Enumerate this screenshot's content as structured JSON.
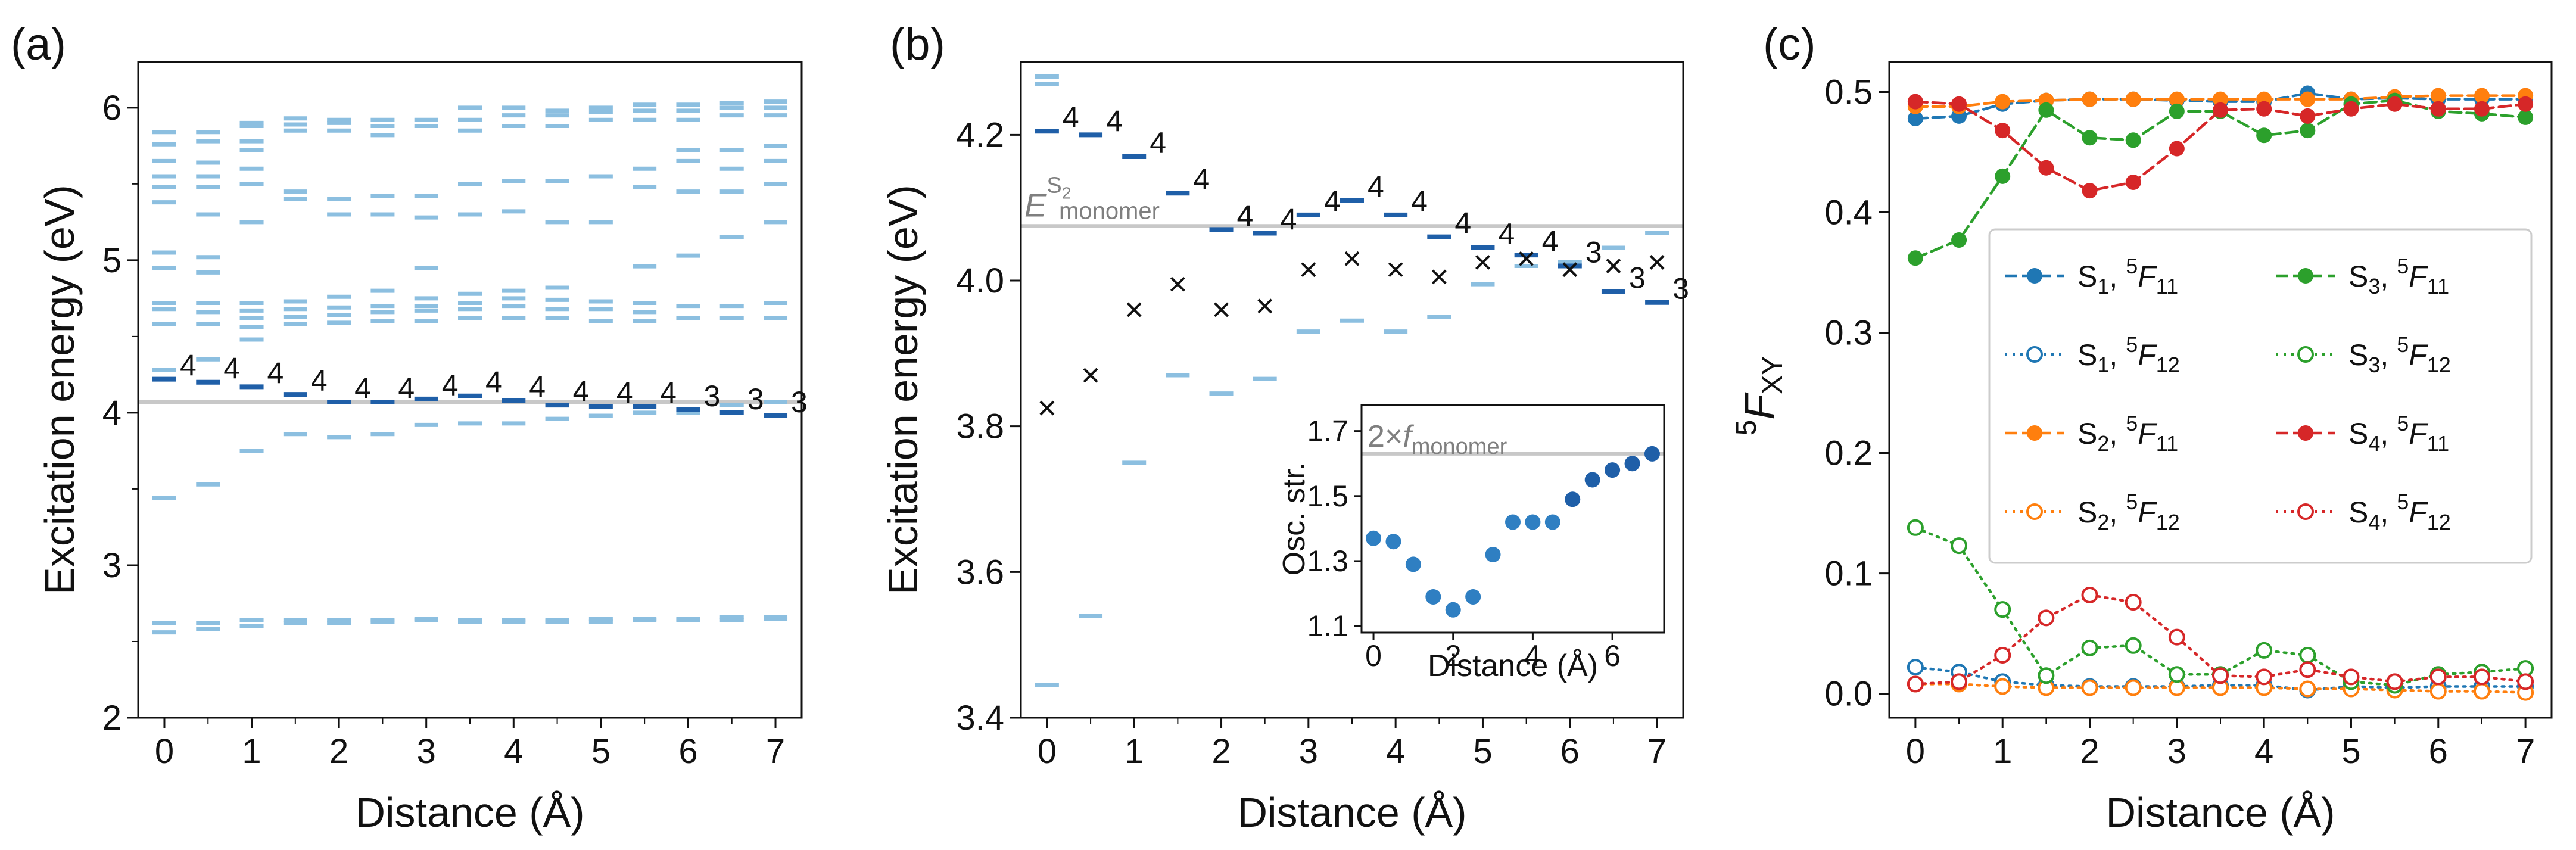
{
  "chart_data": [
    {
      "panel": "(a)",
      "type": "scatter",
      "xlabel": "Distance (Å)",
      "ylabel": "Excitation energy (eV)",
      "xlim": [
        -0.3,
        7.3
      ],
      "ylim": [
        2.0,
        6.3
      ],
      "xticks": [
        "0",
        "1",
        "2",
        "3",
        "4",
        "5",
        "6",
        "7"
      ],
      "yticks": [
        "2",
        "3",
        "4",
        "5",
        "6"
      ],
      "monomer_line": 4.07,
      "x": [
        0,
        0.5,
        1,
        1.5,
        2,
        2.5,
        3,
        3.5,
        4,
        4.5,
        5,
        5.5,
        6,
        6.5,
        7
      ],
      "bright_states": [
        4.22,
        4.2,
        4.17,
        4.12,
        4.07,
        4.07,
        4.09,
        4.11,
        4.08,
        4.05,
        4.04,
        4.04,
        4.02,
        4.0,
        3.98
      ],
      "degeneracy_labels": [
        "4",
        "4",
        "4",
        "4",
        "4",
        "4",
        "4",
        "4",
        "4",
        "4",
        "4",
        "4",
        "3",
        "3",
        "3"
      ],
      "dark_states": [
        [
          2.56,
          2.62,
          3.44,
          4.28,
          4.58,
          4.68,
          4.72,
          4.95,
          5.05,
          5.38,
          5.48,
          5.55,
          5.65,
          5.76,
          5.84
        ],
        [
          2.58,
          2.62,
          3.53,
          4.35,
          4.58,
          4.66,
          4.72,
          4.92,
          5.02,
          5.3,
          5.48,
          5.55,
          5.64,
          5.78,
          5.84
        ],
        [
          2.6,
          2.64,
          3.75,
          4.48,
          4.56,
          4.62,
          4.67,
          4.72,
          5.25,
          5.5,
          5.6,
          5.72,
          5.78,
          5.88,
          5.9
        ],
        [
          2.62,
          2.64,
          3.86,
          4.58,
          4.63,
          4.68,
          4.73,
          5.4,
          5.45,
          5.85,
          5.89,
          5.93
        ],
        [
          2.62,
          2.64,
          3.84,
          4.59,
          4.64,
          4.69,
          4.76,
          5.3,
          5.4,
          5.85,
          5.9,
          5.92
        ],
        [
          2.63,
          2.64,
          3.86,
          4.6,
          4.66,
          4.7,
          4.8,
          5.3,
          5.42,
          5.82,
          5.88,
          5.92
        ],
        [
          2.64,
          2.65,
          3.92,
          4.6,
          4.67,
          4.7,
          4.75,
          4.95,
          5.28,
          5.42,
          5.88,
          5.92
        ],
        [
          2.63,
          2.64,
          3.93,
          4.62,
          4.68,
          4.72,
          4.78,
          5.3,
          5.5,
          5.85,
          5.92,
          6.0
        ],
        [
          2.63,
          2.64,
          3.93,
          4.62,
          4.7,
          4.75,
          4.8,
          5.32,
          5.52,
          5.88,
          5.95,
          6.0
        ],
        [
          2.63,
          2.64,
          3.96,
          4.62,
          4.68,
          4.74,
          4.82,
          5.25,
          5.52,
          5.88,
          5.95,
          5.98
        ],
        [
          2.63,
          2.65,
          3.98,
          4.6,
          4.68,
          4.73,
          5.25,
          5.55,
          5.92,
          5.97,
          6.0
        ],
        [
          2.64,
          2.65,
          4.0,
          4.6,
          4.66,
          4.72,
          4.96,
          5.48,
          5.6,
          5.92,
          5.98,
          6.02
        ],
        [
          2.64,
          2.65,
          4.0,
          4.62,
          4.7,
          5.03,
          5.45,
          5.65,
          5.72,
          5.92,
          5.98,
          6.02
        ],
        [
          2.64,
          2.66,
          4.05,
          4.62,
          4.7,
          5.15,
          5.45,
          5.6,
          5.72,
          5.95,
          6.0,
          6.03
        ],
        [
          2.65,
          2.66,
          4.07,
          4.62,
          4.72,
          5.25,
          5.5,
          5.65,
          5.75,
          5.95,
          6.0,
          6.04
        ]
      ]
    },
    {
      "panel": "(b)",
      "type": "scatter",
      "xlabel": "Distance (Å)",
      "ylabel": "Excitation energy (eV)",
      "xlim": [
        -0.3,
        7.3
      ],
      "ylim": [
        3.4,
        4.3
      ],
      "xticks": [
        "0",
        "1",
        "2",
        "3",
        "4",
        "5",
        "6",
        "7"
      ],
      "yticks": [
        "3.4",
        "3.6",
        "3.8",
        "4.0",
        "4.2"
      ],
      "monomer_line": 4.075,
      "monomer_label": "E",
      "monomer_label_sup": "S",
      "monomer_label_sup_sub": "2",
      "monomer_label_sub": "monomer",
      "x": [
        0,
        0.5,
        1,
        1.5,
        2,
        2.5,
        3,
        3.5,
        4,
        4.5,
        5,
        5.5,
        6,
        6.5,
        7
      ],
      "bright_states": [
        4.205,
        4.2,
        4.17,
        4.12,
        4.07,
        4.065,
        4.09,
        4.11,
        4.09,
        4.06,
        4.045,
        4.035,
        4.02,
        3.985,
        3.97
      ],
      "degeneracy_labels": [
        "4",
        "4",
        "4",
        "4",
        "4",
        "4",
        "4",
        "4",
        "4",
        "4",
        "4",
        "4",
        "3",
        "3",
        "3"
      ],
      "cross_markers": [
        3.825,
        3.87,
        3.96,
        3.995,
        3.96,
        3.965,
        4.015,
        4.03,
        4.015,
        4.005,
        4.025,
        4.03,
        4.015,
        4.02,
        4.025
      ],
      "dark_states": [
        [
          3.445,
          4.28,
          4.27
        ],
        [
          3.54
        ],
        [
          3.75
        ],
        [
          3.87
        ],
        [
          3.845
        ],
        [
          3.865
        ],
        [
          3.93
        ],
        [
          3.945
        ],
        [
          3.93
        ],
        [
          3.95
        ],
        [
          3.995
        ],
        [
          4.02
        ],
        [
          4.025
        ],
        [
          4.045
        ],
        [
          4.065
        ]
      ],
      "inset": {
        "type": "scatter",
        "xlabel": "Distance (Å)",
        "ylabel": "Osc. str.",
        "xlim": [
          -0.3,
          7.3
        ],
        "ylim": [
          1.08,
          1.78
        ],
        "xticks": [
          "0",
          "2",
          "4",
          "6"
        ],
        "yticks": [
          "1.1",
          "1.3",
          "1.5",
          "1.7"
        ],
        "reference_line": 1.63,
        "reference_label": "2×f",
        "reference_label_sub": "monomer",
        "x": [
          0,
          0.5,
          1,
          1.5,
          2,
          2.5,
          3,
          3.5,
          4,
          4.5,
          5,
          5.5,
          6,
          6.5,
          7
        ],
        "values": [
          1.37,
          1.36,
          1.29,
          1.19,
          1.15,
          1.19,
          1.32,
          1.42,
          1.42,
          1.42,
          1.49,
          1.55,
          1.58,
          1.6,
          1.63
        ]
      }
    },
    {
      "panel": "(c)",
      "type": "line",
      "xlabel": "Distance (Å)",
      "ylabel": "F",
      "ylabel_presup": "5",
      "ylabel_sub": "XY",
      "xlim": [
        -0.3,
        7.3
      ],
      "ylim": [
        -0.02,
        0.525
      ],
      "xticks": [
        "0",
        "1",
        "2",
        "3",
        "4",
        "5",
        "6",
        "7"
      ],
      "yticks": [
        "0.0",
        "0.1",
        "0.2",
        "0.3",
        "0.4",
        "0.5"
      ],
      "x": [
        0,
        0.5,
        1,
        1.5,
        2,
        2.5,
        3,
        3.5,
        4,
        4.5,
        5,
        5.5,
        6,
        6.5,
        7
      ],
      "legend_position": "center-right",
      "series": [
        {
          "state": "S",
          "state_sub": "1",
          "prefix": "5",
          "quantity": "F",
          "sub": "11",
          "color": "#1f77b4",
          "style": "dashed",
          "filled": true,
          "values": [
            0.478,
            0.48,
            0.49,
            0.493,
            0.494,
            0.494,
            0.493,
            0.492,
            0.492,
            0.499,
            0.494,
            0.495,
            0.494,
            0.494,
            0.494
          ]
        },
        {
          "state": "S",
          "state_sub": "1",
          "prefix": "5",
          "quantity": "F",
          "sub": "12",
          "color": "#1f77b4",
          "style": "dotted",
          "filled": false,
          "values": [
            0.022,
            0.018,
            0.01,
            0.007,
            0.006,
            0.006,
            0.006,
            0.007,
            0.007,
            0.003,
            0.006,
            0.005,
            0.006,
            0.006,
            0.006
          ]
        },
        {
          "state": "S",
          "state_sub": "2",
          "prefix": "5",
          "quantity": "F",
          "sub": "11",
          "color": "#ff7f0e",
          "style": "dashed",
          "filled": true,
          "values": [
            0.488,
            0.488,
            0.492,
            0.493,
            0.494,
            0.494,
            0.494,
            0.494,
            0.494,
            0.494,
            0.494,
            0.496,
            0.497,
            0.497,
            0.497
          ]
        },
        {
          "state": "S",
          "state_sub": "2",
          "prefix": "5",
          "quantity": "F",
          "sub": "12",
          "color": "#ff7f0e",
          "style": "dotted",
          "filled": false,
          "values": [
            0.008,
            0.008,
            0.006,
            0.005,
            0.005,
            0.005,
            0.005,
            0.005,
            0.005,
            0.004,
            0.004,
            0.003,
            0.002,
            0.002,
            0.001
          ]
        },
        {
          "state": "S",
          "state_sub": "3",
          "prefix": "5",
          "quantity": "F",
          "sub": "11",
          "color": "#2ca02c",
          "style": "dashed",
          "filled": true,
          "values": [
            0.362,
            0.377,
            0.43,
            0.485,
            0.462,
            0.46,
            0.484,
            0.484,
            0.464,
            0.468,
            0.49,
            0.493,
            0.484,
            0.482,
            0.479
          ]
        },
        {
          "state": "S",
          "state_sub": "3",
          "prefix": "5",
          "quantity": "F",
          "sub": "12",
          "color": "#2ca02c",
          "style": "dotted",
          "filled": false,
          "values": [
            0.138,
            0.123,
            0.07,
            0.015,
            0.038,
            0.04,
            0.016,
            0.016,
            0.036,
            0.032,
            0.01,
            0.007,
            0.016,
            0.018,
            0.021
          ]
        },
        {
          "state": "S",
          "state_sub": "4",
          "prefix": "5",
          "quantity": "F",
          "sub": "11",
          "color": "#d62728",
          "style": "dashed",
          "filled": true,
          "values": [
            0.492,
            0.49,
            0.468,
            0.437,
            0.418,
            0.425,
            0.453,
            0.485,
            0.486,
            0.48,
            0.486,
            0.49,
            0.486,
            0.486,
            0.49
          ]
        },
        {
          "state": "S",
          "state_sub": "4",
          "prefix": "5",
          "quantity": "F",
          "sub": "12",
          "color": "#d62728",
          "style": "dotted",
          "filled": false,
          "values": [
            0.008,
            0.01,
            0.032,
            0.063,
            0.082,
            0.076,
            0.047,
            0.015,
            0.014,
            0.02,
            0.014,
            0.01,
            0.014,
            0.014,
            0.01
          ]
        }
      ]
    }
  ]
}
